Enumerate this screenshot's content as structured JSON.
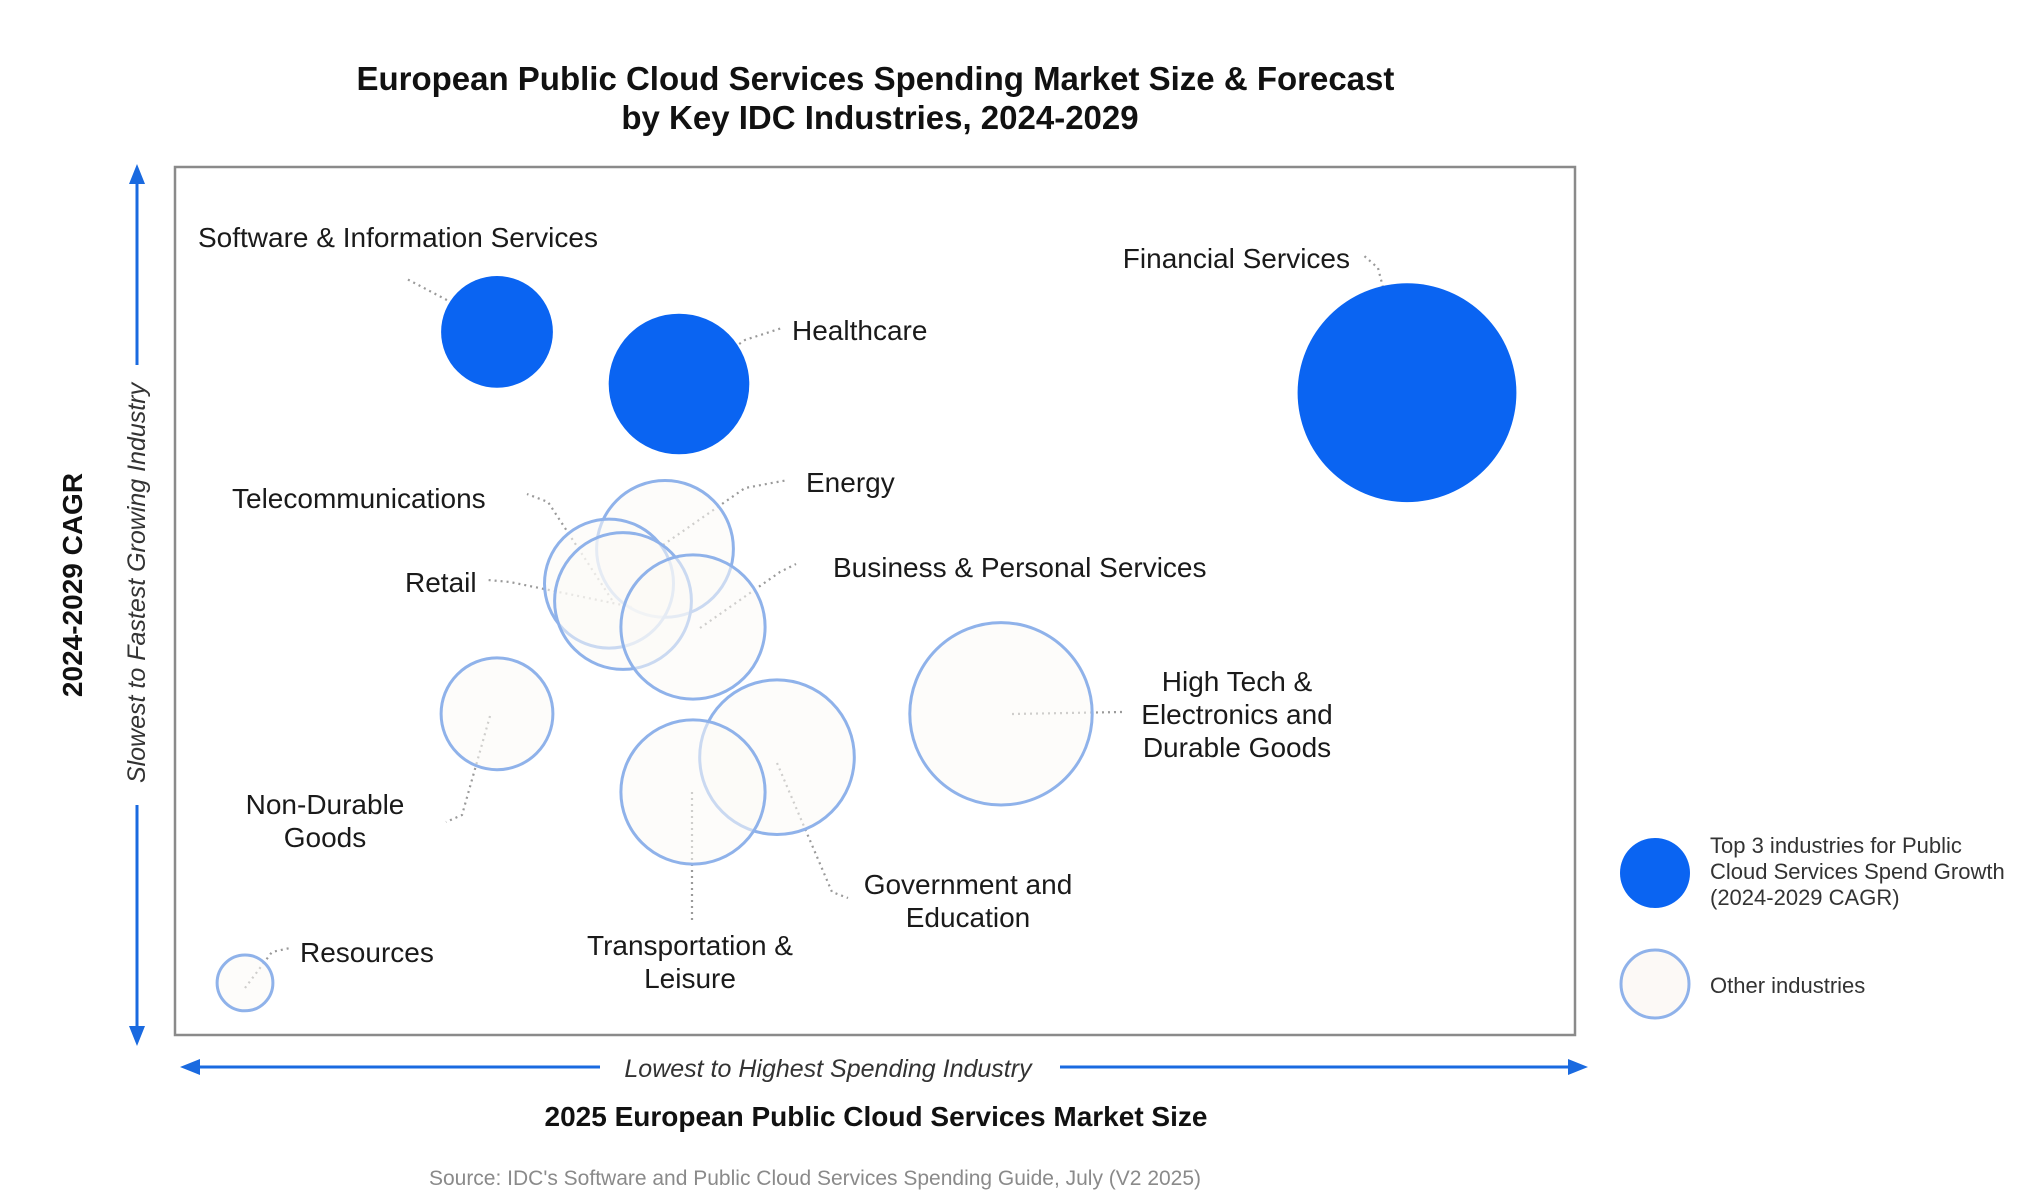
{
  "chart_data": {
    "type": "bubble",
    "title": [
      "European Public Cloud Services Spending Market Size & Forecast",
      "by Key IDC Industries, 2024-2029"
    ],
    "xlabel": "2025 European Public Cloud Services Market Size",
    "ylabel": "2024-2029 CAGR",
    "x_axis_note": "Lowest to Highest Spending Industry",
    "y_axis_note": "Slowest to Fastest Growing Industry",
    "xlim": [
      0,
      100
    ],
    "ylim": [
      0,
      100
    ],
    "grid": false,
    "legend_position": "right",
    "legend": [
      {
        "group": "top3",
        "label": [
          "Top 3 industries for Public",
          "Cloud Services Spend Growth",
          "(2024-2029 CAGR)"
        ]
      },
      {
        "group": "other",
        "label": [
          "Other industries"
        ]
      }
    ],
    "colors": {
      "top3_fill": "#0a64f2",
      "other_fill": "#fcf9f6",
      "other_stroke": "#8fb2ea",
      "axis_arrow": "#1a6ae0",
      "frame": "#8a8a8a"
    },
    "points": [
      {
        "name": "Software & Information Services",
        "label": [
          "Software & Information Services"
        ],
        "x": 23,
        "y": 81,
        "size": 1.2,
        "group": "top3"
      },
      {
        "name": "Healthcare",
        "label": [
          "Healthcare"
        ],
        "x": 36,
        "y": 75,
        "size": 1.9,
        "group": "top3"
      },
      {
        "name": "Financial Services",
        "label": [
          "Financial Services"
        ],
        "x": 88,
        "y": 74,
        "size": 4.6,
        "group": "top3"
      },
      {
        "name": "Energy",
        "label": [
          "Energy"
        ],
        "x": 35,
        "y": 56,
        "size": 1.8,
        "group": "other"
      },
      {
        "name": "Telecommunications",
        "label": [
          "Telecommunications"
        ],
        "x": 31,
        "y": 52,
        "size": 1.6,
        "group": "other"
      },
      {
        "name": "Retail",
        "label": [
          "Retail"
        ],
        "x": 32,
        "y": 50,
        "size": 1.8,
        "group": "other"
      },
      {
        "name": "Business & Personal Services",
        "label": [
          "Business & Personal Services"
        ],
        "x": 37,
        "y": 47,
        "size": 2.0,
        "group": "other"
      },
      {
        "name": "High Tech & Electronics and Durable Goods",
        "label": [
          "High Tech &",
          "Electronics and",
          "Durable Goods"
        ],
        "x": 59,
        "y": 37,
        "size": 3.2,
        "group": "other"
      },
      {
        "name": "Non-Durable Goods",
        "label": [
          "Non-Durable",
          "Goods"
        ],
        "x": 23,
        "y": 37,
        "size": 1.2,
        "group": "other"
      },
      {
        "name": "Government and Education",
        "label": [
          "Government and",
          "Education"
        ],
        "x": 43,
        "y": 32,
        "size": 2.3,
        "group": "other"
      },
      {
        "name": "Transportation & Leisure",
        "label": [
          "Transportation &",
          "Leisure"
        ],
        "x": 37,
        "y": 28,
        "size": 2.0,
        "group": "other"
      },
      {
        "name": "Resources",
        "label": [
          "Resources"
        ],
        "x": 5,
        "y": 6,
        "size": 0.3,
        "group": "other"
      }
    ]
  },
  "source": "Source: IDC's Software and Public Cloud Services Spending Guide, July (V2 2025)"
}
